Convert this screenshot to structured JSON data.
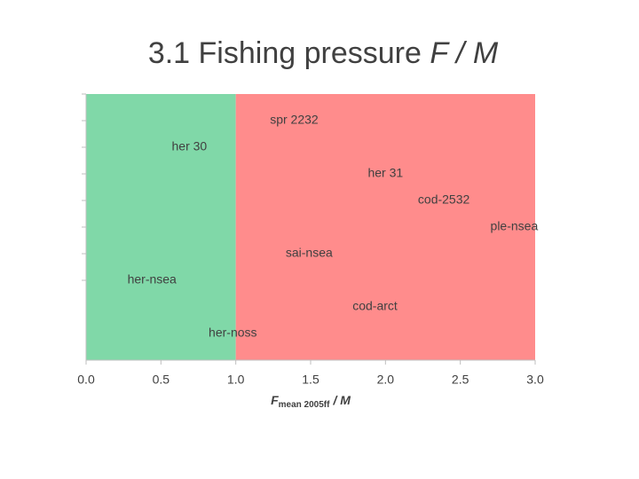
{
  "chart_data": {
    "type": "scatter",
    "title": "3.1 Fishing pressure",
    "title_italic": "F / M",
    "xlabel": {
      "main": "F",
      "sub": "mean 2005ff",
      "tail": "/ M"
    },
    "xlim": [
      0,
      3
    ],
    "xticks": [
      {
        "value": 0,
        "label": "0.0"
      },
      0.5,
      {
        "value": 1,
        "label": "1.0"
      },
      1.5,
      {
        "value": 2,
        "label": "2.0"
      },
      2.5,
      {
        "value": 3,
        "label": "3.0"
      }
    ],
    "ylim": [
      0,
      10
    ],
    "yticks": [
      3,
      4,
      5,
      6,
      7,
      8,
      9,
      10
    ],
    "regions": [
      {
        "from": 0,
        "to": 1,
        "color": "#80d8a8"
      },
      {
        "from": 1,
        "to": 3,
        "color": "#ff8c8c"
      }
    ],
    "labels": [
      "spr 2232",
      "her 30",
      "her 31",
      "cod-2532",
      "ple-nsea",
      "sai-nsea",
      "her-nsea",
      "cod-arct",
      "her-noss"
    ],
    "x": [
      1.39,
      0.69,
      2.0,
      2.39,
      2.86,
      1.49,
      0.44,
      1.93,
      0.98
    ],
    "y": [
      9,
      8,
      7,
      6,
      5,
      4,
      3,
      2,
      1
    ]
  }
}
